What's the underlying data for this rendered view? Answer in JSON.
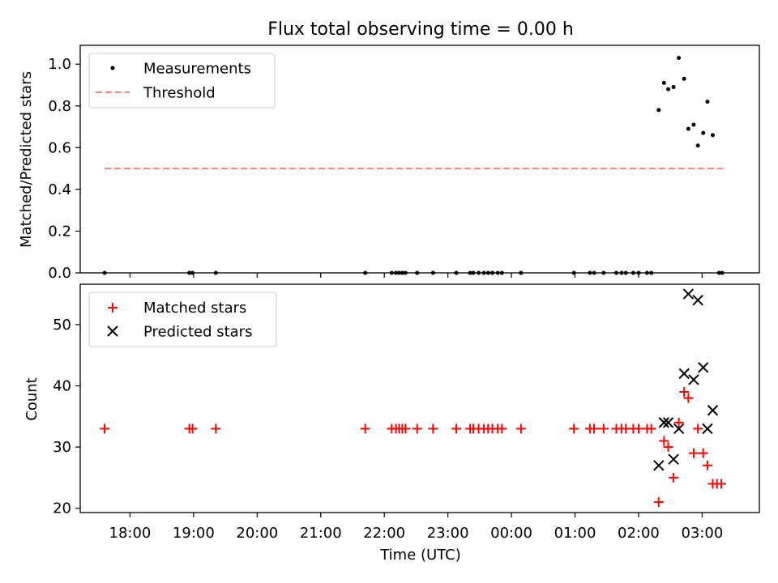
{
  "title": "Flux total observing time = 0.00 h",
  "chart_data": [
    {
      "type": "scatter",
      "ylabel": "Matched/Predicted stars",
      "ylim": [
        0,
        1.09
      ],
      "yticks": [
        "0.0",
        "0.2",
        "0.4",
        "0.6",
        "0.8",
        "1.0"
      ],
      "legend_position": "upper-left",
      "series": [
        {
          "name": "Measurements",
          "color": "#000000",
          "marker": "dot",
          "points": [
            [
              "17:36",
              0
            ],
            [
              "18:56",
              0
            ],
            [
              "18:59",
              0
            ],
            [
              "19:21",
              0
            ],
            [
              "21:42",
              0
            ],
            [
              "22:07",
              0
            ],
            [
              "22:11",
              0
            ],
            [
              "22:14",
              0
            ],
            [
              "22:17",
              0
            ],
            [
              "22:20",
              0
            ],
            [
              "22:31",
              0
            ],
            [
              "22:46",
              0
            ],
            [
              "23:08",
              0
            ],
            [
              "23:21",
              0
            ],
            [
              "23:24",
              0
            ],
            [
              "23:29",
              0
            ],
            [
              "23:34",
              0
            ],
            [
              "23:38",
              0
            ],
            [
              "23:42",
              0
            ],
            [
              "23:47",
              0
            ],
            [
              "23:51",
              0
            ],
            [
              "00:09",
              0
            ],
            [
              "00:59",
              0
            ],
            [
              "01:14",
              0
            ],
            [
              "01:18",
              0
            ],
            [
              "01:27",
              0
            ],
            [
              "01:39",
              0
            ],
            [
              "01:44",
              0
            ],
            [
              "01:48",
              0
            ],
            [
              "01:55",
              0
            ],
            [
              "02:00",
              0
            ],
            [
              "02:08",
              0
            ],
            [
              "02:12",
              0
            ],
            [
              "02:19",
              0.78
            ],
            [
              "02:24",
              0.91
            ],
            [
              "02:28",
              0.88
            ],
            [
              "02:33",
              0.89
            ],
            [
              "02:38",
              1.03
            ],
            [
              "02:43",
              0.93
            ],
            [
              "02:47",
              0.69
            ],
            [
              "02:52",
              0.71
            ],
            [
              "02:56",
              0.61
            ],
            [
              "03:01",
              0.67
            ],
            [
              "03:05",
              0.82
            ],
            [
              "03:10",
              0.66
            ],
            [
              "03:16",
              0
            ],
            [
              "03:19",
              0
            ]
          ]
        },
        {
          "name": "Threshold",
          "color": "#ff7f7f",
          "style": "dashed",
          "points": [
            [
              "17:36",
              0.5
            ],
            [
              "03:20",
              0.5
            ]
          ]
        }
      ]
    },
    {
      "type": "scatter",
      "xlabel": "Time (UTC)",
      "ylabel": "Count",
      "ylim": [
        19.3,
        56.6
      ],
      "yticks": [
        "20",
        "30",
        "40",
        "50"
      ],
      "xticks": [
        "18:00",
        "19:00",
        "20:00",
        "21:00",
        "22:00",
        "23:00",
        "00:00",
        "01:00",
        "02:00",
        "03:00"
      ],
      "legend_position": "upper-left",
      "series": [
        {
          "name": "Matched stars",
          "color": "#ff0000",
          "marker": "plus",
          "points": [
            [
              "17:36",
              33
            ],
            [
              "18:56",
              33
            ],
            [
              "18:59",
              33
            ],
            [
              "19:21",
              33
            ],
            [
              "21:42",
              33
            ],
            [
              "22:07",
              33
            ],
            [
              "22:11",
              33
            ],
            [
              "22:14",
              33
            ],
            [
              "22:17",
              33
            ],
            [
              "22:20",
              33
            ],
            [
              "22:31",
              33
            ],
            [
              "22:46",
              33
            ],
            [
              "23:08",
              33
            ],
            [
              "23:21",
              33
            ],
            [
              "23:24",
              33
            ],
            [
              "23:29",
              33
            ],
            [
              "23:34",
              33
            ],
            [
              "23:38",
              33
            ],
            [
              "23:42",
              33
            ],
            [
              "23:47",
              33
            ],
            [
              "23:51",
              33
            ],
            [
              "00:09",
              33
            ],
            [
              "00:59",
              33
            ],
            [
              "01:14",
              33
            ],
            [
              "01:18",
              33
            ],
            [
              "01:27",
              33
            ],
            [
              "01:39",
              33
            ],
            [
              "01:44",
              33
            ],
            [
              "01:48",
              33
            ],
            [
              "01:55",
              33
            ],
            [
              "02:00",
              33
            ],
            [
              "02:08",
              33
            ],
            [
              "02:12",
              33
            ],
            [
              "02:19",
              21
            ],
            [
              "02:24",
              31
            ],
            [
              "02:28",
              30
            ],
            [
              "02:33",
              25
            ],
            [
              "02:38",
              34
            ],
            [
              "02:43",
              39
            ],
            [
              "02:47",
              38
            ],
            [
              "02:52",
              29
            ],
            [
              "02:56",
              33
            ],
            [
              "03:01",
              29
            ],
            [
              "03:05",
              27
            ],
            [
              "03:10",
              24
            ],
            [
              "03:14",
              24
            ],
            [
              "03:18",
              24
            ]
          ]
        },
        {
          "name": "Predicted stars",
          "color": "#000000",
          "marker": "x",
          "points": [
            [
              "02:19",
              27
            ],
            [
              "02:24",
              34
            ],
            [
              "02:28",
              34
            ],
            [
              "02:33",
              28
            ],
            [
              "02:38",
              33
            ],
            [
              "02:43",
              42
            ],
            [
              "02:47",
              55
            ],
            [
              "02:52",
              41
            ],
            [
              "02:56",
              54
            ],
            [
              "03:01",
              43
            ],
            [
              "03:05",
              33
            ],
            [
              "03:10",
              36
            ]
          ]
        }
      ]
    }
  ]
}
